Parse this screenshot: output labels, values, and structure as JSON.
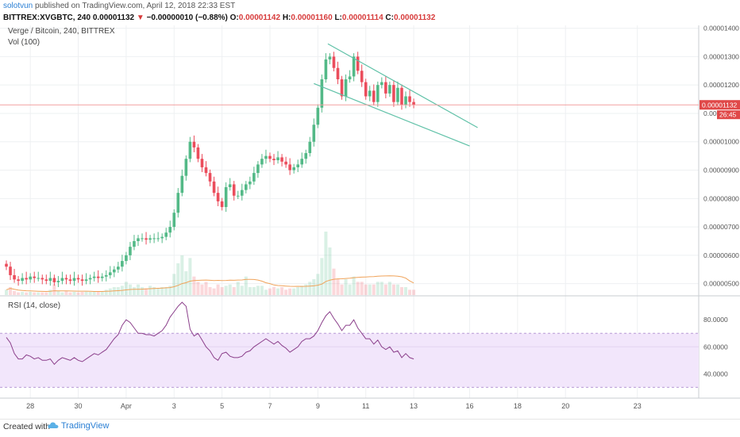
{
  "header": {
    "user": "solotvun",
    "published": "published on TradingView.com, April 12, 2018 22:33 EST",
    "symbol": "BITTREX:XVGBTC, 240",
    "last": "0.00001132",
    "change": "−0.00000010 (−0.88%)",
    "open_label": "O:",
    "open": "0.00001142",
    "high_label": "H:",
    "high": "0.00001160",
    "low_label": "L:",
    "low": "0.00001114",
    "close_label": "C:",
    "close": "0.00001132"
  },
  "legend": {
    "main": "Verge / Bitcoin, 240, BITTREX",
    "vol": "Vol (100)",
    "rsi": "RSI (14, close)"
  },
  "footer": {
    "created": "Created with",
    "brand": "TradingView"
  },
  "colors": {
    "up": "#53b987",
    "down": "#eb4d5c",
    "trend": "#5fc1a7",
    "rsi": "#8b3f8b",
    "rsi_band": "#f2e6fb",
    "price_line": "#f2a0a0",
    "price_box": "#e04848"
  },
  "chart_data": [
    {
      "type": "candlestick",
      "title": "Verge / Bitcoin, 240, BITTREX",
      "x_ticks": [
        "28",
        "30",
        "Apr",
        "3",
        "5",
        "7",
        "9",
        "11",
        "13",
        "16",
        "18",
        "20",
        "23"
      ],
      "y_ticks": [
        "0.00001400",
        "0.00001300",
        "0.00001200",
        "0.00001100",
        "0.00001000",
        "0.00000900",
        "0.00000800",
        "0.00000700",
        "0.00000600",
        "0.00000500"
      ],
      "ylim": [
        4.6e-06,
        1.41e-05
      ],
      "last_price_label": "0.00001132",
      "countdown_label": "26:45",
      "close_series": [
        5.6,
        5.3,
        5.15,
        5.1,
        5.2,
        5.15,
        5.25,
        5.2,
        5.2,
        5.15,
        5.1,
        5.2,
        5.05,
        5.1,
        5.2,
        5.15,
        5.1,
        5.2,
        5.15,
        5.1,
        5.15,
        5.2,
        5.25,
        5.2,
        5.25,
        5.3,
        5.4,
        5.5,
        5.6,
        5.8,
        6.0,
        6.3,
        6.5,
        6.6,
        6.6,
        6.55,
        6.6,
        6.6,
        6.6,
        6.65,
        6.8,
        7.0,
        7.5,
        8.2,
        8.8,
        9.4,
        10.0,
        9.8,
        9.4,
        9.1,
        8.9,
        8.6,
        8.2,
        7.9,
        7.7,
        8.4,
        8.5,
        8.1,
        8.1,
        8.3,
        8.5,
        8.6,
        8.9,
        9.2,
        9.4,
        9.5,
        9.4,
        9.35,
        9.45,
        9.3,
        9.2,
        9.0,
        9.1,
        9.2,
        9.4,
        9.6,
        10.0,
        10.6,
        11.2,
        12.2,
        12.9,
        13.0,
        12.6,
        12.2,
        11.6,
        12.2,
        12.3,
        13.0,
        12.5,
        12.1,
        11.6,
        11.8,
        11.4,
        12.0,
        12.1,
        11.7,
        12.0,
        11.4,
        11.9,
        11.3,
        11.6,
        11.4,
        11.3
      ],
      "volume_series": [
        2,
        3,
        1.5,
        1,
        1.2,
        1,
        1.2,
        1,
        1,
        1,
        1,
        2,
        4,
        1.5,
        1,
        1.5,
        1,
        1.2,
        1,
        1.2,
        1.3,
        1.2,
        1.5,
        1.3,
        1.5,
        2,
        2.5,
        3,
        3,
        3.5,
        5,
        4,
        3,
        4,
        3,
        2.5,
        3.5,
        3,
        2.5,
        3,
        3,
        3.5,
        8,
        12,
        15,
        9,
        14,
        7,
        5,
        4,
        5,
        3,
        2.5,
        4,
        3,
        3.5,
        4,
        3,
        5,
        3.5,
        7,
        3,
        3,
        3.5,
        3.5,
        2,
        2.5,
        3,
        2.5,
        3,
        2,
        2.5,
        2.5,
        3,
        3.5,
        4,
        5,
        6,
        8,
        14,
        24,
        18,
        10,
        6,
        4,
        6,
        4,
        7,
        5,
        5,
        4,
        4,
        4,
        5,
        5,
        4,
        5,
        4,
        4,
        3,
        3,
        2,
        2
      ],
      "trendline_upper": {
        "from": [
          80.5,
          13.45
        ],
        "to": [
          118,
          10.5
        ]
      },
      "trendline_lower": {
        "from": [
          77,
          12.05
        ],
        "to": [
          116,
          9.85
        ]
      }
    },
    {
      "type": "line",
      "title": "RSI (14, close)",
      "y_ticks": [
        "80.0000",
        "60.0000",
        "40.0000"
      ],
      "ylim": [
        22,
        96
      ],
      "band": [
        30,
        70
      ],
      "values": [
        67,
        63,
        55,
        51,
        51,
        54,
        53,
        51,
        52,
        50,
        50,
        51,
        47,
        50,
        52,
        51,
        50,
        52,
        50,
        49,
        51,
        53,
        55,
        54,
        56,
        58,
        62,
        66,
        69,
        76,
        80,
        78,
        74,
        70,
        70,
        69,
        69,
        68,
        70,
        72,
        76,
        82,
        86,
        90,
        93,
        90,
        73,
        68,
        70,
        65,
        60,
        57,
        52,
        50,
        55,
        56,
        53,
        52,
        52,
        53,
        56,
        57,
        60,
        62,
        64,
        66,
        64,
        62,
        64,
        61,
        59,
        56,
        58,
        60,
        64,
        66,
        66,
        68,
        72,
        78,
        83,
        86,
        81,
        77,
        72,
        76,
        76,
        80,
        74,
        70,
        66,
        66,
        62,
        65,
        60,
        58,
        60,
        56,
        57,
        52,
        55,
        52,
        51
      ]
    }
  ]
}
